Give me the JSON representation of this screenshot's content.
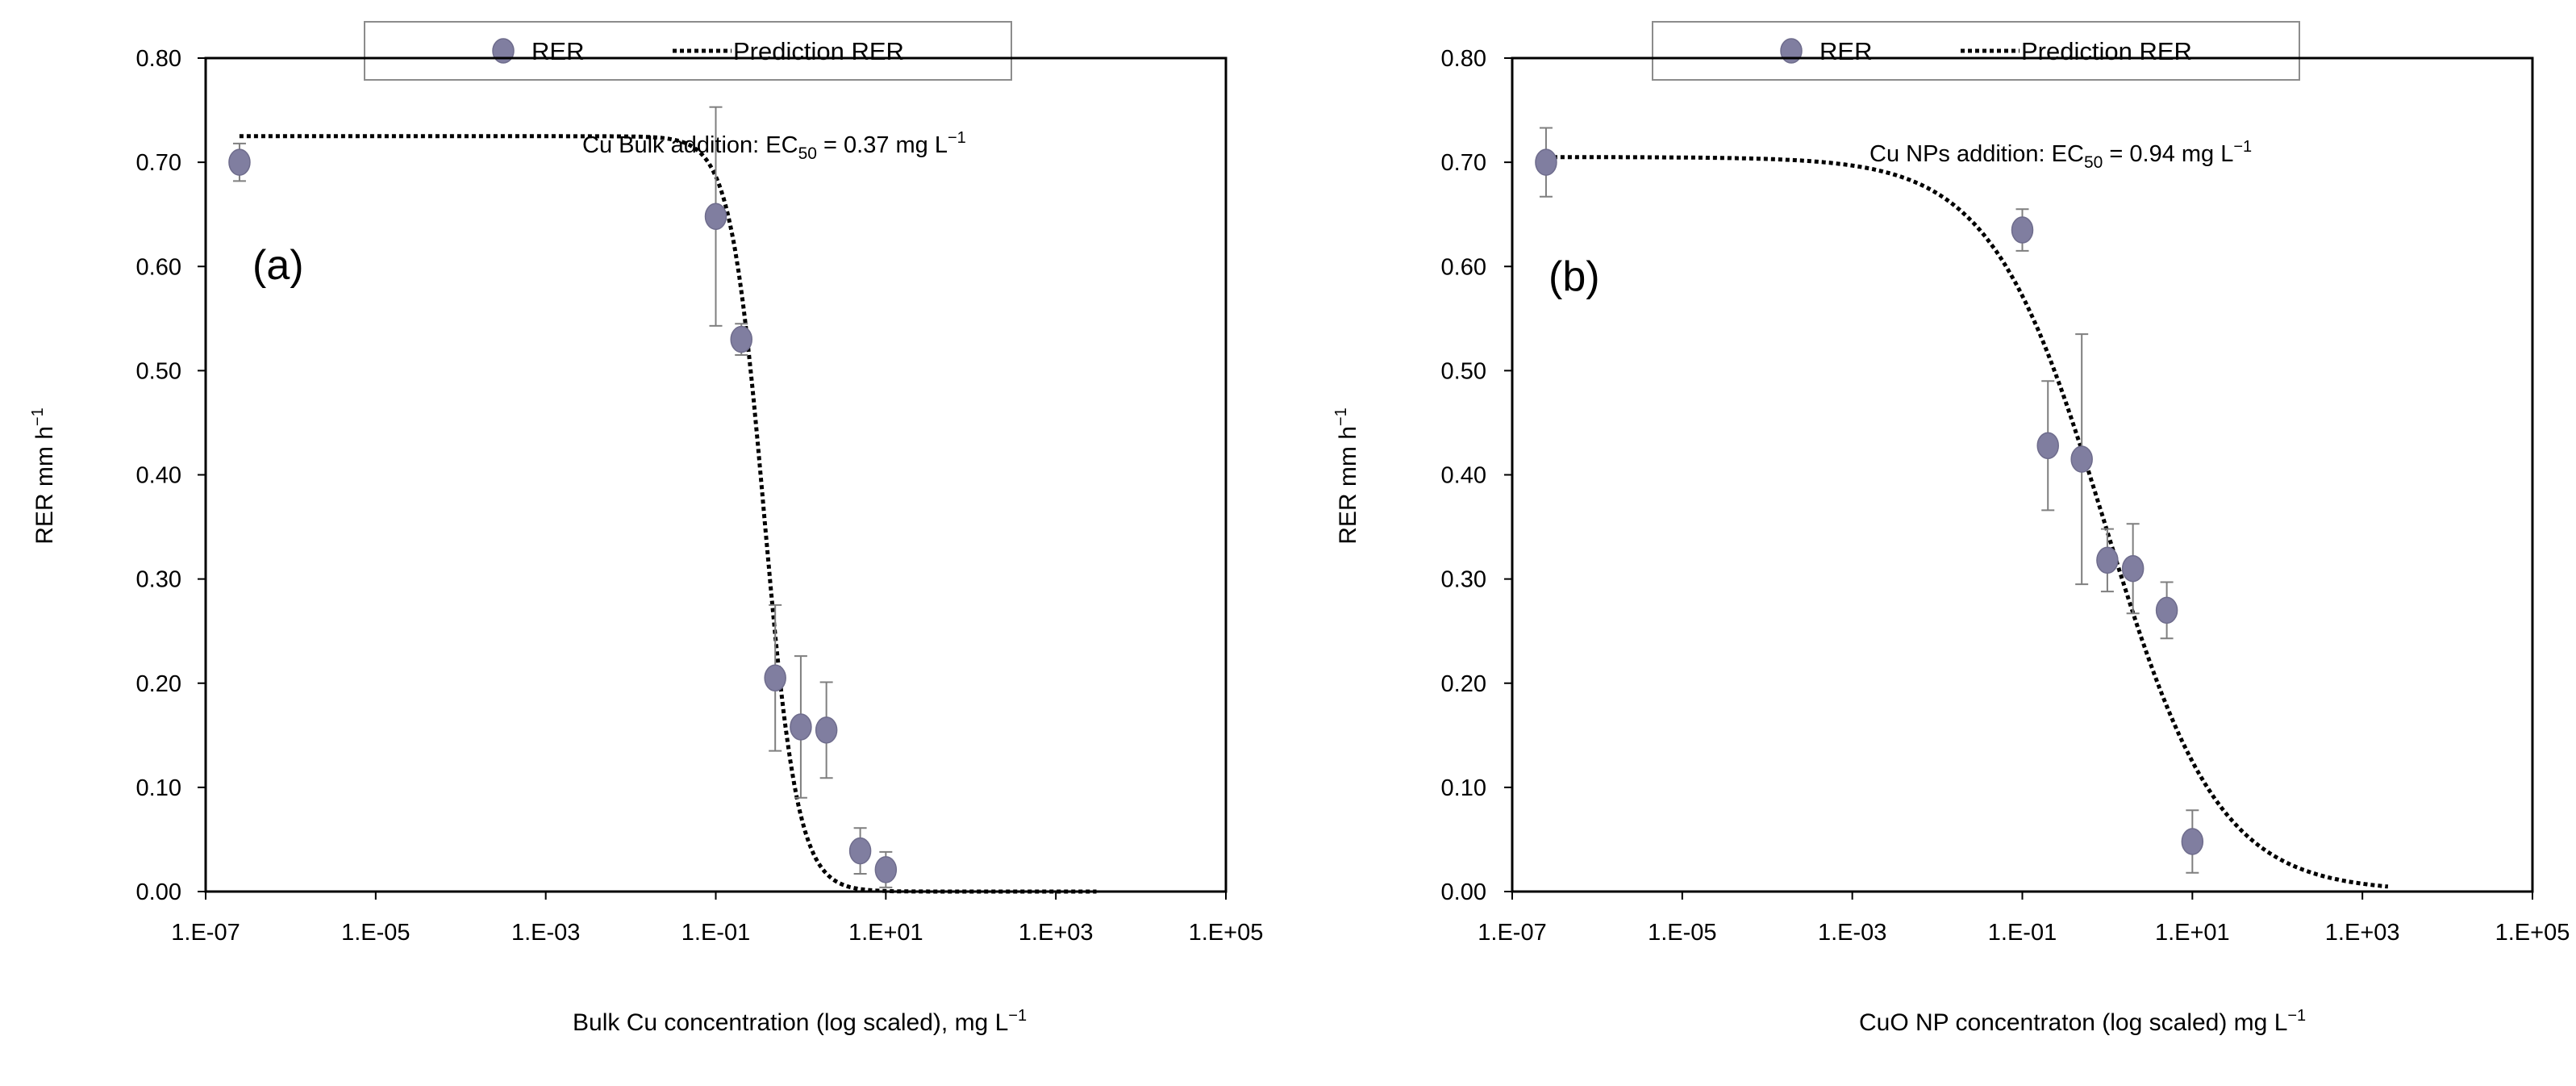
{
  "chart_data": [
    {
      "type": "scatter",
      "panel_label": "(a)",
      "annotation": {
        "prefix": "Cu Bulk addition: EC",
        "sub": "50",
        "suffix": " = 0.37 mg L",
        "sup": "−1"
      },
      "legend": {
        "points": "RER",
        "line": "Prediction RER",
        "placement": "top-center outside"
      },
      "xlabel": {
        "text": "Bulk Cu concentration (log  scaled), mg L",
        "sup": "−1"
      },
      "ylabel": {
        "text": "RER mm h",
        "sup": "−1"
      },
      "x_scale": "log",
      "xlim": [
        1e-07,
        100000.0
      ],
      "ylim": [
        0,
        0.8
      ],
      "x_ticks": [
        1e-07,
        1e-05,
        0.001,
        0.1,
        10,
        1000,
        100000
      ],
      "x_tick_labels": [
        "1.E-07",
        "1.E-05",
        "1.E-03",
        "1.E-01",
        "1.E+01",
        "1.E+03",
        "1.E+05"
      ],
      "y_ticks": [
        0,
        0.1,
        0.2,
        0.3,
        0.4,
        0.5,
        0.6,
        0.7,
        0.8
      ],
      "y_tick_labels": [
        "0.00",
        "0.10",
        "0.20",
        "0.30",
        "0.40",
        "0.50",
        "0.60",
        "0.70",
        "0.80"
      ],
      "series": [
        {
          "name": "RER",
          "x": [
            2.5e-07,
            0.1,
            0.2,
            0.5,
            1,
            2,
            5,
            10
          ],
          "y": [
            0.7,
            0.648,
            0.53,
            0.205,
            0.158,
            0.155,
            0.039,
            0.021
          ],
          "error": [
            0.018,
            0.105,
            0.015,
            0.07,
            0.068,
            0.046,
            0.022,
            0.017
          ]
        },
        {
          "name": "Prediction RER",
          "model": {
            "top": 0.725,
            "ec50": 0.37,
            "hill": 2.2,
            "x_from": 2.5e-07,
            "x_to": 3000
          }
        }
      ]
    },
    {
      "type": "scatter",
      "panel_label": "(b)",
      "annotation": {
        "prefix": "Cu NPs addition: EC",
        "sub": "50",
        "suffix": " = 0.94 mg L",
        "sup": "−1"
      },
      "legend": {
        "points": "RER",
        "line": "Prediction RER",
        "placement": "top-center outside"
      },
      "xlabel": {
        "text": "CuO NP concentraton (log scaled) mg L",
        "sup": "−1"
      },
      "ylabel": {
        "text": "RER mm h",
        "sup": "−1"
      },
      "x_scale": "log",
      "xlim": [
        1e-07,
        100000.0
      ],
      "ylim": [
        0,
        0.8
      ],
      "x_ticks": [
        1e-07,
        1e-05,
        0.001,
        0.1,
        10,
        1000,
        100000
      ],
      "x_tick_labels": [
        "1.E-07",
        "1.E-05",
        "1.E-03",
        "1.E-01",
        "1.E+01",
        "1.E+03",
        "1.E+05"
      ],
      "y_ticks": [
        0,
        0.1,
        0.2,
        0.3,
        0.4,
        0.5,
        0.6,
        0.7,
        0.8
      ],
      "y_tick_labels": [
        "0.00",
        "0.10",
        "0.20",
        "0.30",
        "0.40",
        "0.50",
        "0.60",
        "0.70",
        "0.80"
      ],
      "series": [
        {
          "name": "RER",
          "x": [
            2.5e-07,
            0.1,
            0.2,
            0.5,
            1,
            2,
            5,
            10
          ],
          "y": [
            0.7,
            0.635,
            0.428,
            0.415,
            0.318,
            0.31,
            0.27,
            0.048
          ],
          "error": [
            0.033,
            0.02,
            0.062,
            0.12,
            0.03,
            0.043,
            0.027,
            0.03
          ]
        },
        {
          "name": "Prediction RER",
          "model": {
            "top": 0.705,
            "ec50": 0.94,
            "hill": 0.65,
            "x_from": 2.5e-07,
            "x_to": 2000
          }
        }
      ]
    }
  ],
  "colors": {
    "marker": "#807ea0",
    "marker_edge": "#6e6c8c",
    "errorbar": "#7f7f7f",
    "line": "#000000",
    "frame": "#000000"
  }
}
